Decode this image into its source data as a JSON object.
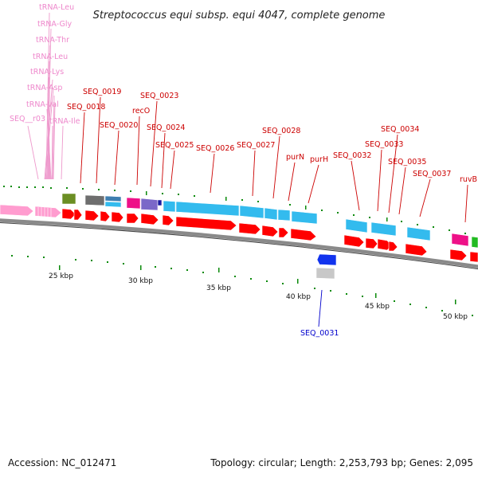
{
  "title": "Streptococcus equi subsp. equi 4047, complete genome",
  "footer": {
    "accession": "Accession: NC_012471",
    "summary": "Topology: circular; Length: 2,253,793 bp; Genes: 2,095"
  },
  "scale": {
    "ticks": [
      {
        "label": "25 kbp"
      },
      {
        "label": "30 kbp"
      },
      {
        "label": "35 kbp"
      },
      {
        "label": "40 kbp"
      },
      {
        "label": "45 kbp"
      },
      {
        "label": "50 kbp"
      }
    ]
  },
  "colors": {
    "cds": "#ff0000",
    "rna": "#ff9ccf",
    "cog_cyan": "#33bbee",
    "backbone": "#8a8a8a",
    "label_red": "#cc0000",
    "label_pink": "#ee88cc",
    "label_blue": "#0000cc"
  },
  "labels": {
    "trna": [
      "tRNA-Leu",
      "tRNA-Gly",
      "tRNA-Thr",
      "tRNA-Leu",
      "tRNA-Lys",
      "tRNA-Asp",
      "tRNA-Val",
      "tRNA-Ile",
      "SEQ__r03"
    ],
    "genes_top": [
      "SEQ_0018",
      "SEQ_0019",
      "SEQ_0020",
      "recO",
      "SEQ_0023",
      "SEQ_0024",
      "SEQ_0025",
      "SEQ_0026",
      "SEQ_0027",
      "SEQ_0028",
      "purN",
      "purH",
      "SEQ_0032",
      "SEQ_0033",
      "SEQ_0034",
      "SEQ_0035",
      "SEQ_0037",
      "ruvB"
    ],
    "genes_bottom": [
      "SEQ_0031"
    ]
  }
}
